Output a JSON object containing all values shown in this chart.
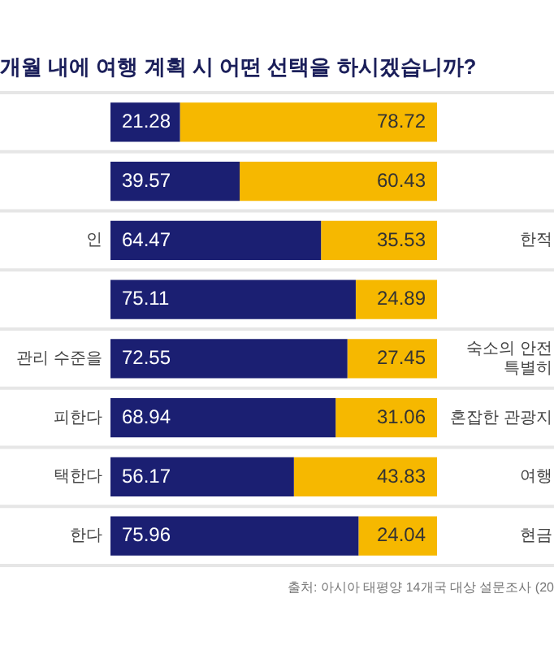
{
  "chart_data": {
    "type": "bar",
    "orientation": "horizontal",
    "stacked": true,
    "title": "개월 내에 여행 계획 시 어떤 선택을 하시겠습니까?",
    "categories": [
      null,
      null,
      "인",
      null,
      "관리 수준을",
      "피한다",
      "택한다",
      "한다"
    ],
    "y2_categories": [
      null,
      null,
      "한적",
      null,
      "숙소의 안전\n특별히",
      "혼잡한 관광지",
      "여행",
      "현금"
    ],
    "series": [
      {
        "color": "#1b1f72",
        "values": [
          21.28,
          39.57,
          64.47,
          75.11,
          72.55,
          68.94,
          56.17,
          75.96
        ]
      },
      {
        "color": "#f6b800",
        "values": [
          78.72,
          60.43,
          35.53,
          24.89,
          27.45,
          31.06,
          43.83,
          24.04
        ]
      }
    ],
    "data_labels": true,
    "grid": "y",
    "annotations": [
      "출처: 아시아 태평양 14개국 대상 설문조사 (20"
    ]
  }
}
